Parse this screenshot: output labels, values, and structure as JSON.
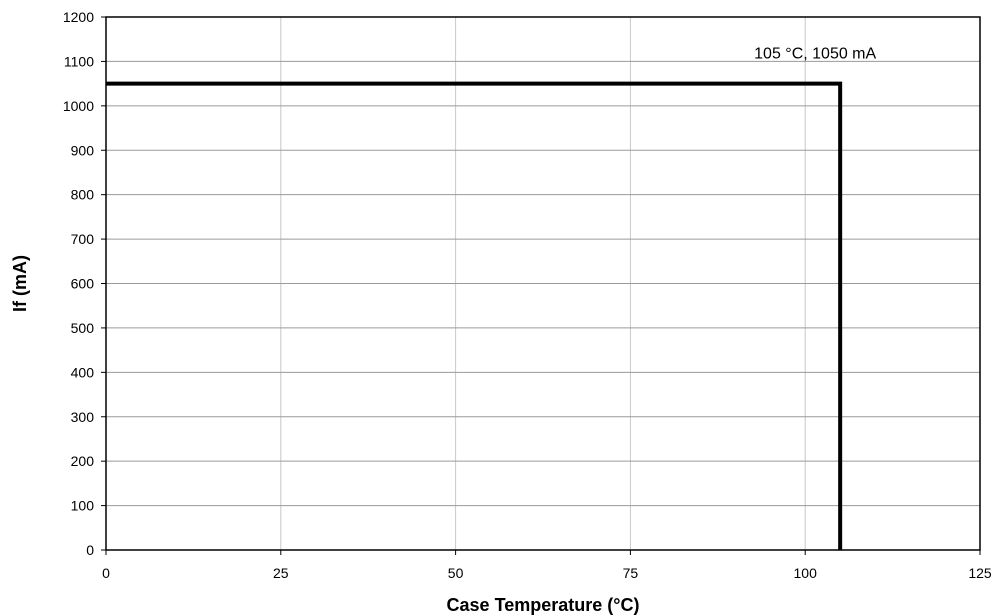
{
  "chart_data": {
    "type": "line",
    "title": "",
    "xlabel": "Case Temperature (°C)",
    "ylabel": "If (mA)",
    "xlim": [
      0,
      125
    ],
    "ylim": [
      0,
      1200
    ],
    "x_ticks": [
      0,
      25,
      50,
      75,
      100,
      125
    ],
    "y_ticks": [
      0,
      100,
      200,
      300,
      400,
      500,
      600,
      700,
      800,
      900,
      1000,
      1100,
      1200
    ],
    "grid": true,
    "legend": "none",
    "series": [
      {
        "color": "#000000",
        "points": [
          [
            0,
            1050
          ],
          [
            105,
            1050
          ],
          [
            105,
            0
          ]
        ]
      }
    ],
    "annotations": [
      {
        "text": "105 °C, 1050 mA",
        "x": 105,
        "y": 1050
      }
    ]
  }
}
